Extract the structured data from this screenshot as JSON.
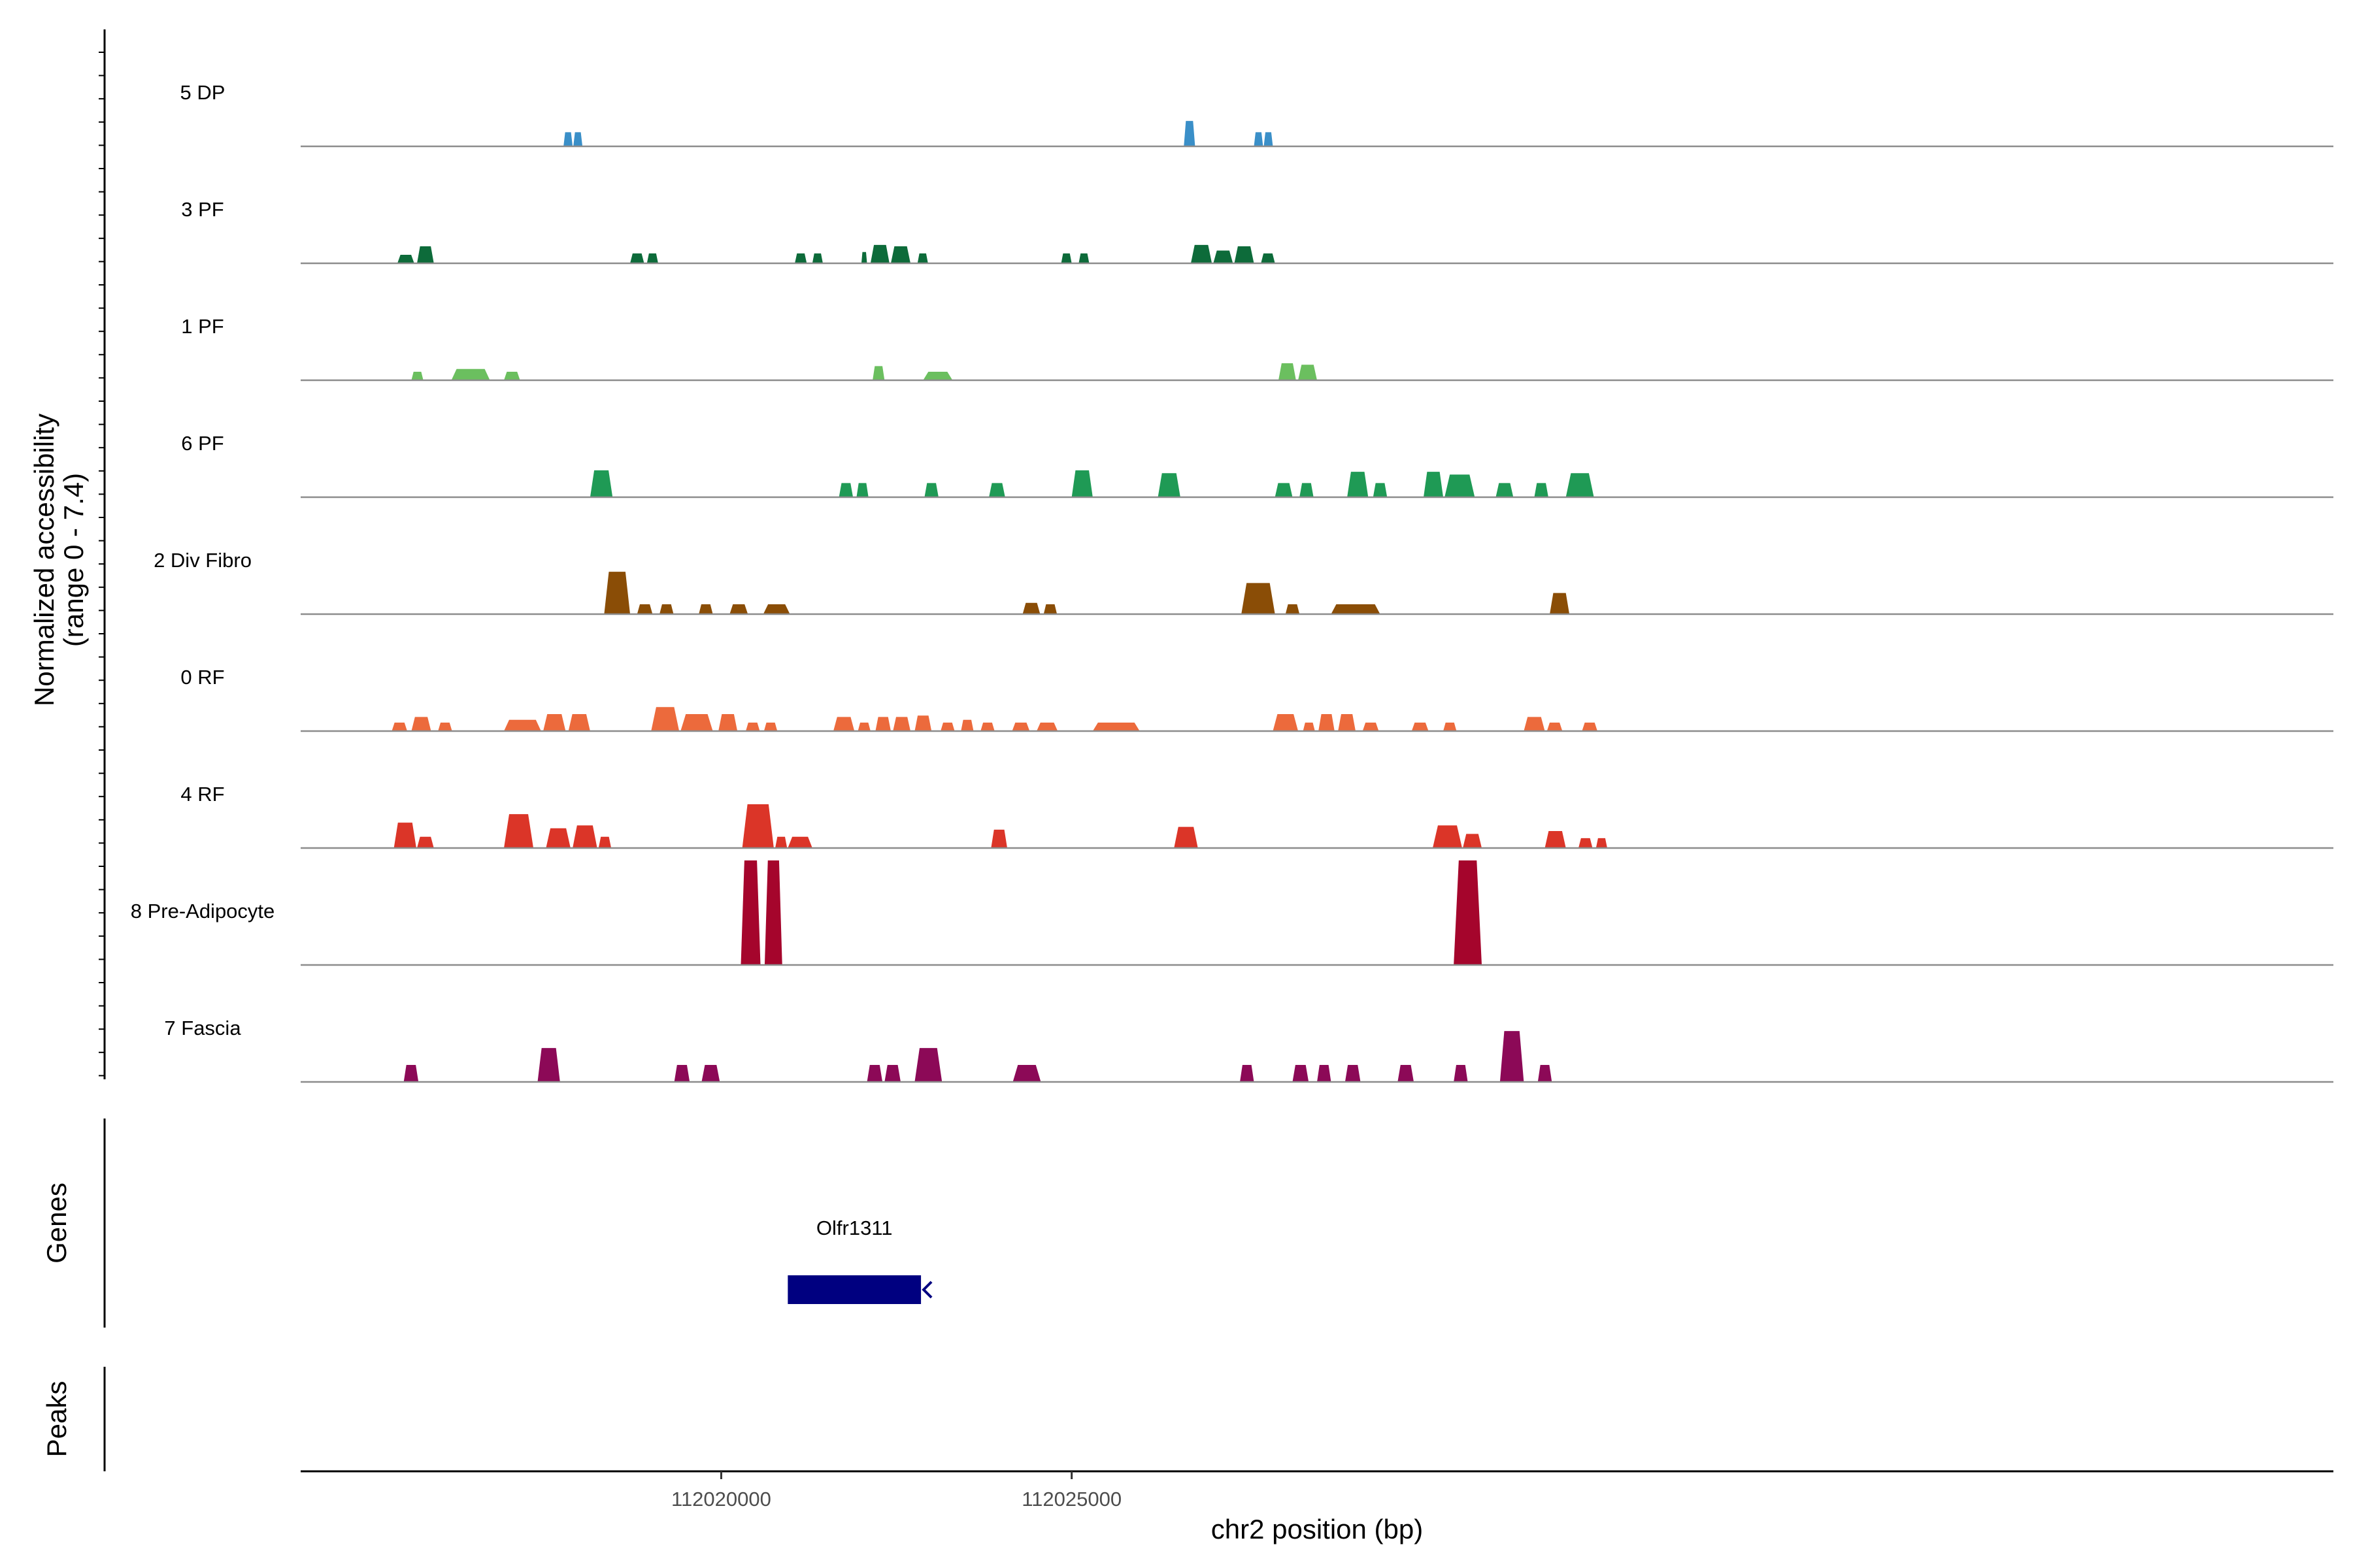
{
  "chart_data": {
    "type": "area",
    "x_axis": {
      "label": "chr2 position (bp)",
      "range": [
        112014000,
        112043000
      ],
      "ticks": [
        112020000,
        112025000
      ],
      "tick_labels": [
        "112020000",
        "112025000"
      ]
    },
    "y_axis": {
      "label": "Normalized accessibility",
      "sublabel": "(range 0 - 7.4)",
      "range": [
        0,
        7.4
      ]
    },
    "panels": {
      "genes_label": "Genes",
      "peaks_label": "Peaks"
    },
    "tracks": [
      {
        "name": "5 DP",
        "color": "#3a8fc8",
        "peaks": [
          [
            112017750,
            112017880,
            1.0
          ],
          [
            112017890,
            112018020,
            1.0
          ],
          [
            112026600,
            112026760,
            1.8
          ],
          [
            112027600,
            112027730,
            1.0
          ],
          [
            112027740,
            112027870,
            1.0
          ]
        ]
      },
      {
        "name": "3 PF",
        "color": "#0d6b3a",
        "peaks": [
          [
            112015380,
            112015620,
            0.6
          ],
          [
            112015660,
            112015900,
            1.2
          ],
          [
            112018700,
            112018900,
            0.7
          ],
          [
            112018940,
            112019100,
            0.7
          ],
          [
            112021050,
            112021220,
            0.7
          ],
          [
            112021300,
            112021450,
            0.7
          ],
          [
            112022000,
            112022080,
            0.8
          ],
          [
            112022130,
            112022400,
            1.3
          ],
          [
            112022420,
            112022700,
            1.2
          ],
          [
            112022800,
            112022950,
            0.7
          ],
          [
            112024850,
            112025000,
            0.7
          ],
          [
            112025100,
            112025250,
            0.7
          ],
          [
            112026700,
            112027000,
            1.3
          ],
          [
            112027020,
            112027300,
            0.9
          ],
          [
            112027320,
            112027600,
            1.2
          ],
          [
            112027700,
            112027900,
            0.7
          ]
        ]
      },
      {
        "name": "1 PF",
        "color": "#6bbf5f",
        "peaks": [
          [
            112015580,
            112015750,
            0.6
          ],
          [
            112016150,
            112016700,
            0.8
          ],
          [
            112016900,
            112017130,
            0.6
          ],
          [
            112022160,
            112022330,
            1.0
          ],
          [
            112022880,
            112023300,
            0.6
          ],
          [
            112027950,
            112028200,
            1.2
          ],
          [
            112028230,
            112028500,
            1.1
          ]
        ]
      },
      {
        "name": "6 PF",
        "color": "#1f9a55",
        "peaks": [
          [
            112018130,
            112018450,
            1.9
          ],
          [
            112021680,
            112021880,
            1.0
          ],
          [
            112021930,
            112022100,
            1.0
          ],
          [
            112022900,
            112023100,
            1.0
          ],
          [
            112023820,
            112024050,
            1.0
          ],
          [
            112025000,
            112025300,
            1.9
          ],
          [
            112026230,
            112026550,
            1.7
          ],
          [
            112027900,
            112028150,
            1.0
          ],
          [
            112028250,
            112028450,
            1.0
          ],
          [
            112028930,
            112029230,
            1.8
          ],
          [
            112029300,
            112029500,
            1.0
          ],
          [
            112030020,
            112030300,
            1.8
          ],
          [
            112030320,
            112030750,
            1.6
          ],
          [
            112031050,
            112031300,
            1.0
          ],
          [
            112031600,
            112031800,
            1.0
          ],
          [
            112032050,
            112032450,
            1.7
          ]
        ]
      },
      {
        "name": "2 Div Fibro",
        "color": "#8a4d06",
        "peaks": [
          [
            112018330,
            112018700,
            3.0
          ],
          [
            112018800,
            112019020,
            0.7
          ],
          [
            112019120,
            112019320,
            0.7
          ],
          [
            112019680,
            112019880,
            0.7
          ],
          [
            112020120,
            112020380,
            0.7
          ],
          [
            112020600,
            112020980,
            0.7
          ],
          [
            112024300,
            112024550,
            0.8
          ],
          [
            112024600,
            112024790,
            0.7
          ],
          [
            112027420,
            112027900,
            2.2
          ],
          [
            112028050,
            112028250,
            0.7
          ],
          [
            112028700,
            112029400,
            0.7
          ],
          [
            112031820,
            112032100,
            1.5
          ]
        ]
      },
      {
        "name": "0 RF",
        "color": "#ec6a3c",
        "peaks": [
          [
            112015300,
            112015520,
            0.6
          ],
          [
            112015580,
            112015860,
            1.0
          ],
          [
            112015960,
            112016160,
            0.6
          ],
          [
            112016900,
            112017430,
            0.8
          ],
          [
            112017460,
            112017780,
            1.2
          ],
          [
            112017820,
            112018130,
            1.2
          ],
          [
            112019000,
            112019400,
            1.7
          ],
          [
            112019420,
            112019880,
            1.2
          ],
          [
            112019960,
            112020230,
            1.2
          ],
          [
            112020350,
            112020550,
            0.6
          ],
          [
            112020610,
            112020800,
            0.6
          ],
          [
            112021600,
            112021900,
            1.0
          ],
          [
            112021950,
            112022130,
            0.6
          ],
          [
            112022200,
            112022420,
            1.0
          ],
          [
            112022450,
            112022700,
            1.0
          ],
          [
            112022760,
            112023000,
            1.1
          ],
          [
            112023130,
            112023330,
            0.6
          ],
          [
            112023420,
            112023600,
            0.8
          ],
          [
            112023700,
            112023900,
            0.6
          ],
          [
            112024150,
            112024400,
            0.6
          ],
          [
            112024500,
            112024800,
            0.6
          ],
          [
            112025300,
            112025970,
            0.6
          ],
          [
            112027870,
            112028230,
            1.2
          ],
          [
            112028300,
            112028470,
            0.6
          ],
          [
            112028520,
            112028750,
            1.2
          ],
          [
            112028800,
            112029050,
            1.2
          ],
          [
            112029150,
            112029380,
            0.6
          ],
          [
            112029850,
            112030090,
            0.6
          ],
          [
            112030300,
            112030490,
            0.6
          ],
          [
            112031450,
            112031750,
            1.0
          ],
          [
            112031780,
            112032000,
            0.6
          ],
          [
            112032280,
            112032500,
            0.6
          ]
        ]
      },
      {
        "name": "4 RF",
        "color": "#db3528",
        "peaks": [
          [
            112015330,
            112015650,
            1.8
          ],
          [
            112015660,
            112015900,
            0.8
          ],
          [
            112016900,
            112017320,
            2.4
          ],
          [
            112017500,
            112017850,
            1.4
          ],
          [
            112017880,
            112018230,
            1.6
          ],
          [
            112018250,
            112018430,
            0.8
          ],
          [
            112020300,
            112020750,
            3.1
          ],
          [
            112020770,
            112020940,
            0.8
          ],
          [
            112020950,
            112021300,
            0.8
          ],
          [
            112023850,
            112024080,
            1.3
          ],
          [
            112026460,
            112026800,
            1.5
          ],
          [
            112030150,
            112030570,
            1.6
          ],
          [
            112030580,
            112030850,
            1.0
          ],
          [
            112031750,
            112032050,
            1.2
          ],
          [
            112032230,
            112032430,
            0.7
          ],
          [
            112032480,
            112032640,
            0.7
          ]
        ]
      },
      {
        "name": "8 Pre-Adipocyte",
        "color": "#a5052c",
        "peaks": [
          [
            112020280,
            112020560,
            7.4
          ],
          [
            112020620,
            112020870,
            7.4
          ],
          [
            112030450,
            112030850,
            7.4
          ]
        ]
      },
      {
        "name": "7 Fascia",
        "color": "#8c0957",
        "peaks": [
          [
            112015470,
            112015680,
            1.2
          ],
          [
            112017380,
            112017700,
            2.4
          ],
          [
            112019330,
            112019550,
            1.2
          ],
          [
            112019720,
            112019980,
            1.2
          ],
          [
            112022080,
            112022300,
            1.2
          ],
          [
            112022330,
            112022560,
            1.2
          ],
          [
            112022760,
            112023150,
            2.4
          ],
          [
            112024160,
            112024560,
            1.2
          ],
          [
            112027400,
            112027600,
            1.2
          ],
          [
            112028150,
            112028380,
            1.2
          ],
          [
            112028500,
            112028700,
            1.2
          ],
          [
            112028900,
            112029120,
            1.2
          ],
          [
            112029650,
            112029880,
            1.2
          ],
          [
            112030450,
            112030650,
            1.2
          ],
          [
            112031110,
            112031450,
            3.6
          ],
          [
            112031650,
            112031850,
            1.2
          ]
        ]
      }
    ],
    "genes": [
      {
        "name": "Olfr1311",
        "start": 112020950,
        "end": 112022850,
        "strand": "-",
        "color": "#000080"
      }
    ],
    "peaks": []
  }
}
